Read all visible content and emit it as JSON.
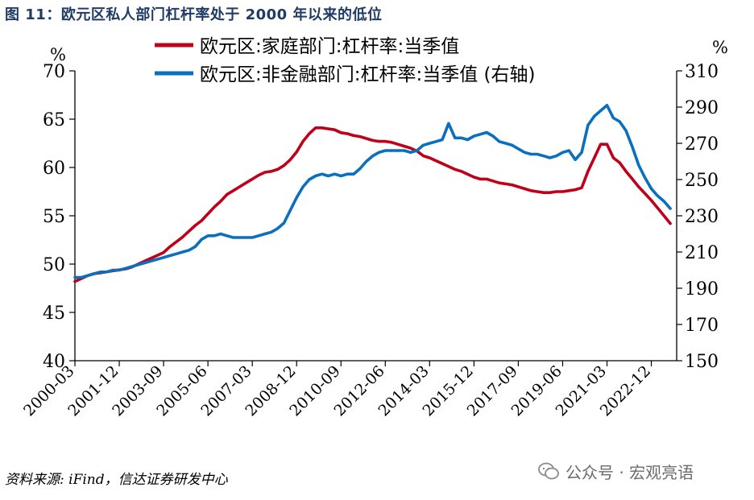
{
  "title": "图 11：欧元区私人部门杠杆率处于 2000 年以来的低位",
  "source": "资料来源: iFind，信达证券研发中心",
  "watermark": {
    "icon": "wechat-icon",
    "text": "公众号 · 宏观亮语"
  },
  "colors": {
    "household": "#c0001a",
    "nonfinancial": "#0a6fbe",
    "title": "#1f3b66"
  },
  "chart_data": {
    "type": "line",
    "x_ticks": [
      "2000-03",
      "2001-12",
      "2003-09",
      "2005-06",
      "2007-03",
      "2008-12",
      "2010-09",
      "2012-06",
      "2014-03",
      "2015-12",
      "2017-09",
      "2019-06",
      "2021-03",
      "2022-12"
    ],
    "left_unit": "%",
    "right_unit": "%",
    "ylim_left": [
      40,
      70
    ],
    "yticks_left": [
      40,
      45,
      50,
      55,
      60,
      65,
      70
    ],
    "ylim_right": [
      150,
      310
    ],
    "yticks_right": [
      150,
      170,
      190,
      210,
      230,
      250,
      270,
      290,
      310
    ],
    "grid": false,
    "legend_placement": "top-center",
    "series": [
      {
        "name": "欧元区:家庭部门:杠杆率:当季值",
        "axis": "left",
        "color": "#c0001a",
        "points": [
          [
            "2000-03",
            48.2
          ],
          [
            "2000-06",
            48.5
          ],
          [
            "2000-09",
            48.8
          ],
          [
            "2000-12",
            49.0
          ],
          [
            "2001-03",
            49.1
          ],
          [
            "2001-06",
            49.2
          ],
          [
            "2001-09",
            49.3
          ],
          [
            "2001-12",
            49.4
          ],
          [
            "2002-03",
            49.5
          ],
          [
            "2002-06",
            49.7
          ],
          [
            "2002-09",
            50.0
          ],
          [
            "2002-12",
            50.3
          ],
          [
            "2003-03",
            50.6
          ],
          [
            "2003-06",
            50.9
          ],
          [
            "2003-09",
            51.2
          ],
          [
            "2003-12",
            51.8
          ],
          [
            "2004-03",
            52.3
          ],
          [
            "2004-06",
            52.8
          ],
          [
            "2004-09",
            53.4
          ],
          [
            "2004-12",
            54.0
          ],
          [
            "2005-03",
            54.5
          ],
          [
            "2005-06",
            55.2
          ],
          [
            "2005-09",
            55.9
          ],
          [
            "2005-12",
            56.5
          ],
          [
            "2006-03",
            57.2
          ],
          [
            "2006-06",
            57.6
          ],
          [
            "2006-09",
            58.0
          ],
          [
            "2006-12",
            58.4
          ],
          [
            "2007-03",
            58.8
          ],
          [
            "2007-06",
            59.2
          ],
          [
            "2007-09",
            59.5
          ],
          [
            "2007-12",
            59.6
          ],
          [
            "2008-03",
            59.8
          ],
          [
            "2008-06",
            60.2
          ],
          [
            "2008-09",
            60.8
          ],
          [
            "2008-12",
            61.6
          ],
          [
            "2009-03",
            62.7
          ],
          [
            "2009-06",
            63.5
          ],
          [
            "2009-09",
            64.1
          ],
          [
            "2009-12",
            64.1
          ],
          [
            "2010-03",
            64.0
          ],
          [
            "2010-06",
            63.9
          ],
          [
            "2010-09",
            63.6
          ],
          [
            "2010-12",
            63.5
          ],
          [
            "2011-03",
            63.3
          ],
          [
            "2011-06",
            63.2
          ],
          [
            "2011-09",
            63.0
          ],
          [
            "2011-12",
            62.8
          ],
          [
            "2012-03",
            62.7
          ],
          [
            "2012-06",
            62.7
          ],
          [
            "2012-09",
            62.6
          ],
          [
            "2012-12",
            62.4
          ],
          [
            "2013-03",
            62.2
          ],
          [
            "2013-06",
            62.0
          ],
          [
            "2013-09",
            61.7
          ],
          [
            "2013-12",
            61.2
          ],
          [
            "2014-03",
            61.0
          ],
          [
            "2014-06",
            60.7
          ],
          [
            "2014-09",
            60.4
          ],
          [
            "2014-12",
            60.1
          ],
          [
            "2015-03",
            59.8
          ],
          [
            "2015-06",
            59.6
          ],
          [
            "2015-09",
            59.3
          ],
          [
            "2015-12",
            59.0
          ],
          [
            "2016-03",
            58.8
          ],
          [
            "2016-06",
            58.8
          ],
          [
            "2016-09",
            58.6
          ],
          [
            "2016-12",
            58.4
          ],
          [
            "2017-03",
            58.3
          ],
          [
            "2017-06",
            58.2
          ],
          [
            "2017-09",
            58.0
          ],
          [
            "2017-12",
            57.8
          ],
          [
            "2018-03",
            57.6
          ],
          [
            "2018-06",
            57.5
          ],
          [
            "2018-09",
            57.4
          ],
          [
            "2018-12",
            57.4
          ],
          [
            "2019-03",
            57.5
          ],
          [
            "2019-06",
            57.5
          ],
          [
            "2019-09",
            57.6
          ],
          [
            "2019-12",
            57.7
          ],
          [
            "2020-03",
            57.9
          ],
          [
            "2020-06",
            59.6
          ],
          [
            "2020-09",
            61.0
          ],
          [
            "2020-12",
            62.4
          ],
          [
            "2021-03",
            62.4
          ],
          [
            "2021-06",
            61.0
          ],
          [
            "2021-09",
            60.5
          ],
          [
            "2021-12",
            59.6
          ],
          [
            "2022-03",
            58.8
          ],
          [
            "2022-06",
            58.0
          ],
          [
            "2022-09",
            57.3
          ],
          [
            "2022-12",
            56.6
          ],
          [
            "2023-03",
            55.8
          ],
          [
            "2023-06",
            55.0
          ],
          [
            "2023-09",
            54.2
          ]
        ]
      },
      {
        "name": "欧元区:非金融部门:杠杆率:当季值 (右轴)",
        "axis": "right",
        "color": "#0a6fbe",
        "points": [
          [
            "2000-03",
            196
          ],
          [
            "2000-06",
            196
          ],
          [
            "2000-09",
            197
          ],
          [
            "2000-12",
            198
          ],
          [
            "2001-03",
            199
          ],
          [
            "2001-06",
            199
          ],
          [
            "2001-09",
            200
          ],
          [
            "2001-12",
            200
          ],
          [
            "2002-03",
            201
          ],
          [
            "2002-06",
            202
          ],
          [
            "2002-09",
            203
          ],
          [
            "2002-12",
            204
          ],
          [
            "2003-03",
            205
          ],
          [
            "2003-06",
            206
          ],
          [
            "2003-09",
            207
          ],
          [
            "2003-12",
            208
          ],
          [
            "2004-03",
            209
          ],
          [
            "2004-06",
            210
          ],
          [
            "2004-09",
            211
          ],
          [
            "2004-12",
            213
          ],
          [
            "2005-03",
            217
          ],
          [
            "2005-06",
            219
          ],
          [
            "2005-09",
            219
          ],
          [
            "2005-12",
            220
          ],
          [
            "2006-03",
            219
          ],
          [
            "2006-06",
            218
          ],
          [
            "2006-09",
            218
          ],
          [
            "2006-12",
            218
          ],
          [
            "2007-03",
            218
          ],
          [
            "2007-06",
            219
          ],
          [
            "2007-09",
            220
          ],
          [
            "2007-12",
            221
          ],
          [
            "2008-03",
            223
          ],
          [
            "2008-06",
            226
          ],
          [
            "2008-09",
            233
          ],
          [
            "2008-12",
            240
          ],
          [
            "2009-03",
            246
          ],
          [
            "2009-06",
            250
          ],
          [
            "2009-09",
            252
          ],
          [
            "2009-12",
            253
          ],
          [
            "2010-03",
            252
          ],
          [
            "2010-06",
            253
          ],
          [
            "2010-09",
            252
          ],
          [
            "2010-12",
            253
          ],
          [
            "2011-03",
            253
          ],
          [
            "2011-06",
            256
          ],
          [
            "2011-09",
            260
          ],
          [
            "2011-12",
            263
          ],
          [
            "2012-03",
            265
          ],
          [
            "2012-06",
            266
          ],
          [
            "2012-09",
            266
          ],
          [
            "2012-12",
            266
          ],
          [
            "2013-03",
            266
          ],
          [
            "2013-06",
            265
          ],
          [
            "2013-09",
            266
          ],
          [
            "2013-12",
            269
          ],
          [
            "2014-03",
            270
          ],
          [
            "2014-06",
            271
          ],
          [
            "2014-09",
            272
          ],
          [
            "2014-12",
            281
          ],
          [
            "2015-03",
            273
          ],
          [
            "2015-06",
            273
          ],
          [
            "2015-09",
            272
          ],
          [
            "2015-12",
            274
          ],
          [
            "2016-03",
            275
          ],
          [
            "2016-06",
            276
          ],
          [
            "2016-09",
            274
          ],
          [
            "2016-12",
            271
          ],
          [
            "2017-03",
            270
          ],
          [
            "2017-06",
            269
          ],
          [
            "2017-09",
            267
          ],
          [
            "2017-12",
            265
          ],
          [
            "2018-03",
            264
          ],
          [
            "2018-06",
            264
          ],
          [
            "2018-09",
            263
          ],
          [
            "2018-12",
            262
          ],
          [
            "2019-03",
            263
          ],
          [
            "2019-06",
            265
          ],
          [
            "2019-09",
            266
          ],
          [
            "2019-12",
            261
          ],
          [
            "2020-03",
            265
          ],
          [
            "2020-06",
            280
          ],
          [
            "2020-09",
            285
          ],
          [
            "2020-12",
            288
          ],
          [
            "2021-03",
            291
          ],
          [
            "2021-06",
            284
          ],
          [
            "2021-09",
            282
          ],
          [
            "2021-12",
            277
          ],
          [
            "2022-03",
            268
          ],
          [
            "2022-06",
            258
          ],
          [
            "2022-09",
            251
          ],
          [
            "2022-12",
            245
          ],
          [
            "2023-03",
            241
          ],
          [
            "2023-06",
            238
          ],
          [
            "2023-09",
            234
          ]
        ]
      }
    ]
  }
}
